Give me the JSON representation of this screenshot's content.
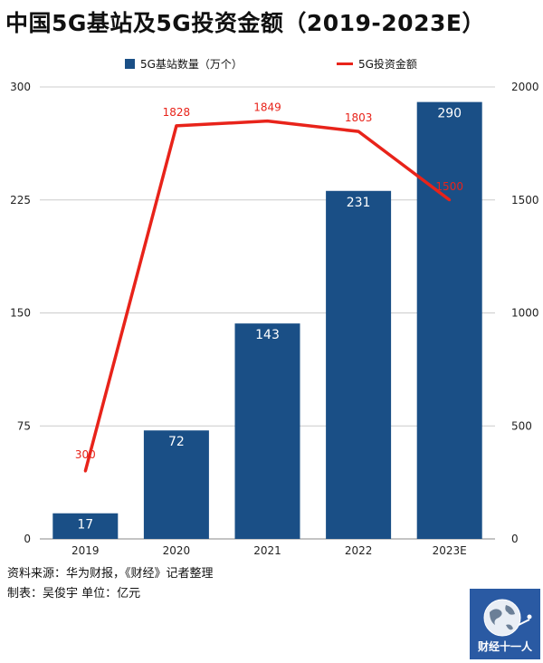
{
  "title": "中国5G基站及5G投资金额（2019-2023E）",
  "legend": {
    "bar_label": "5G基站数量（万个）",
    "line_label": "5G投资金额"
  },
  "colors": {
    "bar": "#1a4f86",
    "line": "#e8231a",
    "grid": "#cccccc"
  },
  "chart_data": {
    "type": "bar+line",
    "categories": [
      "2019",
      "2020",
      "2021",
      "2022",
      "2023E"
    ],
    "series": [
      {
        "name": "5G基站数量（万个）",
        "type": "bar",
        "axis": "left",
        "values": [
          17,
          72,
          143,
          231,
          290
        ]
      },
      {
        "name": "5G投资金额",
        "type": "line",
        "axis": "right",
        "values": [
          300,
          1828,
          1849,
          1803,
          1500
        ]
      }
    ],
    "y_left": {
      "ylim": [
        0,
        300
      ],
      "ticks": [
        "0",
        "75",
        "150",
        "225",
        "300"
      ]
    },
    "y_right": {
      "ylim": [
        0,
        2000
      ],
      "ticks": [
        "0",
        "500",
        "1000",
        "1500",
        "2000"
      ]
    },
    "grid": true,
    "legend_position": "top"
  },
  "footer": {
    "source": "资料来源：华为财报，《财经》记者整理",
    "author": "制表：吴俊宇    单位：亿元"
  },
  "logo": {
    "text": "财经十一人",
    "icon": "globe-icon"
  }
}
